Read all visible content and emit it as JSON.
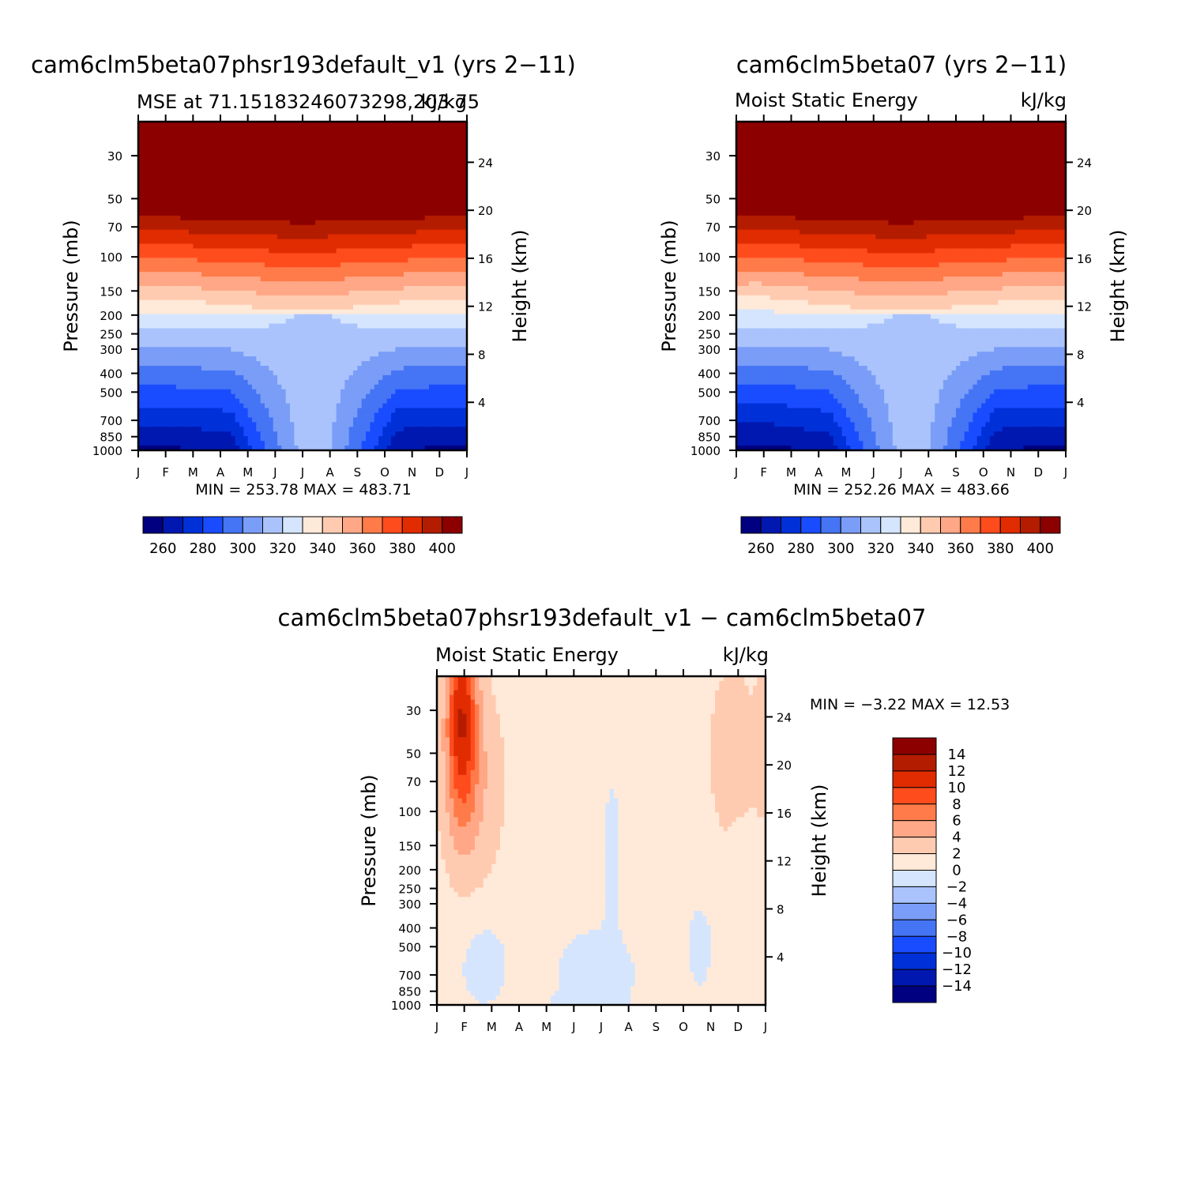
{
  "figure": {
    "panels": [
      {
        "title": "cam6clm5beta07phsr193default_v1 (yrs 2−11)",
        "left_label": "MSE at 71.15183246073298,203.75",
        "right_label": "kJ/kg",
        "minmax": "MIN =  253.78 MAX =  483.71"
      },
      {
        "title": "cam6clm5beta07 (yrs 2−11)",
        "left_label": "Moist Static Energy",
        "right_label": "kJ/kg",
        "minmax": "MIN =  252.26 MAX =  483.66"
      },
      {
        "title": "cam6clm5beta07phsr193default_v1 − cam6clm5beta07",
        "left_label": "Moist Static Energy",
        "right_label": "kJ/kg",
        "minmax": "MIN =   −3.22 MAX =   12.53"
      }
    ],
    "y_left_label": "Pressure (mb)",
    "y_right_label": "Height (km)"
  },
  "chart_data": [
    {
      "type": "heatmap",
      "title": "cam6clm5beta07phsr193default_v1 (yrs 2−11)",
      "subtitle": "MSE at 71.15183246073298,203.75",
      "units": "kJ/kg",
      "xlabel": "",
      "ylabel": "Pressure (mb)",
      "ylabel_right": "Height (km)",
      "x_ticks": [
        "J",
        "F",
        "M",
        "A",
        "M",
        "J",
        "J",
        "A",
        "S",
        "O",
        "N",
        "D",
        "J"
      ],
      "y_ticks": [
        30,
        50,
        70,
        100,
        150,
        200,
        250,
        300,
        400,
        500,
        700,
        850,
        1000
      ],
      "y_right_ticks": [
        4,
        8,
        12,
        16,
        20,
        24
      ],
      "ylim": [
        1000,
        20
      ],
      "levels": [
        260,
        270,
        280,
        290,
        300,
        310,
        320,
        330,
        340,
        350,
        360,
        370,
        380,
        390,
        400
      ],
      "colors": [
        "#000080",
        "#0018b0",
        "#0030d8",
        "#1a4cff",
        "#4575f5",
        "#7a9df8",
        "#aac3fc",
        "#d5e5fe",
        "#ffe9d9",
        "#ffcbb0",
        "#ffa786",
        "#ff7b49",
        "#ff4c1d",
        "#e02c00",
        "#b41c00",
        "#8c0000"
      ],
      "colorbar_labels": [
        260,
        280,
        300,
        320,
        340,
        360,
        380,
        400
      ],
      "min": 253.78,
      "max": 483.71
    },
    {
      "type": "heatmap",
      "title": "cam6clm5beta07 (yrs 2−11)",
      "subtitle": "Moist Static Energy",
      "units": "kJ/kg",
      "xlabel": "",
      "ylabel": "Pressure (mb)",
      "ylabel_right": "Height (km)",
      "x_ticks": [
        "J",
        "F",
        "M",
        "A",
        "M",
        "J",
        "J",
        "A",
        "S",
        "O",
        "N",
        "D",
        "J"
      ],
      "y_ticks": [
        30,
        50,
        70,
        100,
        150,
        200,
        250,
        300,
        400,
        500,
        700,
        850,
        1000
      ],
      "y_right_ticks": [
        4,
        8,
        12,
        16,
        20,
        24
      ],
      "ylim": [
        1000,
        20
      ],
      "levels": [
        260,
        270,
        280,
        290,
        300,
        310,
        320,
        330,
        340,
        350,
        360,
        370,
        380,
        390,
        400
      ],
      "colors": [
        "#000080",
        "#0018b0",
        "#0030d8",
        "#1a4cff",
        "#4575f5",
        "#7a9df8",
        "#aac3fc",
        "#d5e5fe",
        "#ffe9d9",
        "#ffcbb0",
        "#ffa786",
        "#ff7b49",
        "#ff4c1d",
        "#e02c00",
        "#b41c00",
        "#8c0000"
      ],
      "colorbar_labels": [
        260,
        280,
        300,
        320,
        340,
        360,
        380,
        400
      ],
      "min": 252.26,
      "max": 483.66
    },
    {
      "type": "heatmap",
      "title": "cam6clm5beta07phsr193default_v1 − cam6clm5beta07",
      "subtitle": "Moist Static Energy",
      "units": "kJ/kg",
      "xlabel": "",
      "ylabel": "Pressure (mb)",
      "ylabel_right": "Height (km)",
      "x_ticks": [
        "J",
        "F",
        "M",
        "A",
        "M",
        "J",
        "J",
        "A",
        "S",
        "O",
        "N",
        "D",
        "J"
      ],
      "y_ticks": [
        30,
        50,
        70,
        100,
        150,
        200,
        250,
        300,
        400,
        500,
        700,
        850,
        1000
      ],
      "y_right_ticks": [
        4,
        8,
        12,
        16,
        20,
        24
      ],
      "ylim": [
        1000,
        20
      ],
      "levels": [
        -14,
        -12,
        -10,
        -8,
        -6,
        -4,
        -2,
        0,
        2,
        4,
        6,
        8,
        10,
        12,
        14
      ],
      "colors": [
        "#000080",
        "#0018b0",
        "#0030d8",
        "#1a4cff",
        "#4575f5",
        "#7a9df8",
        "#aac3fc",
        "#d5e5fe",
        "#ffe9d9",
        "#ffcbb0",
        "#ffa786",
        "#ff7b49",
        "#ff4c1d",
        "#e02c00",
        "#b41c00",
        "#8c0000"
      ],
      "colorbar_labels": [
        14,
        12,
        10,
        8,
        6,
        4,
        2,
        0,
        -2,
        -4,
        -6,
        -8,
        -10,
        -12,
        -14
      ],
      "colorbar_orientation": "vertical",
      "min": -3.22,
      "max": 12.53
    }
  ]
}
